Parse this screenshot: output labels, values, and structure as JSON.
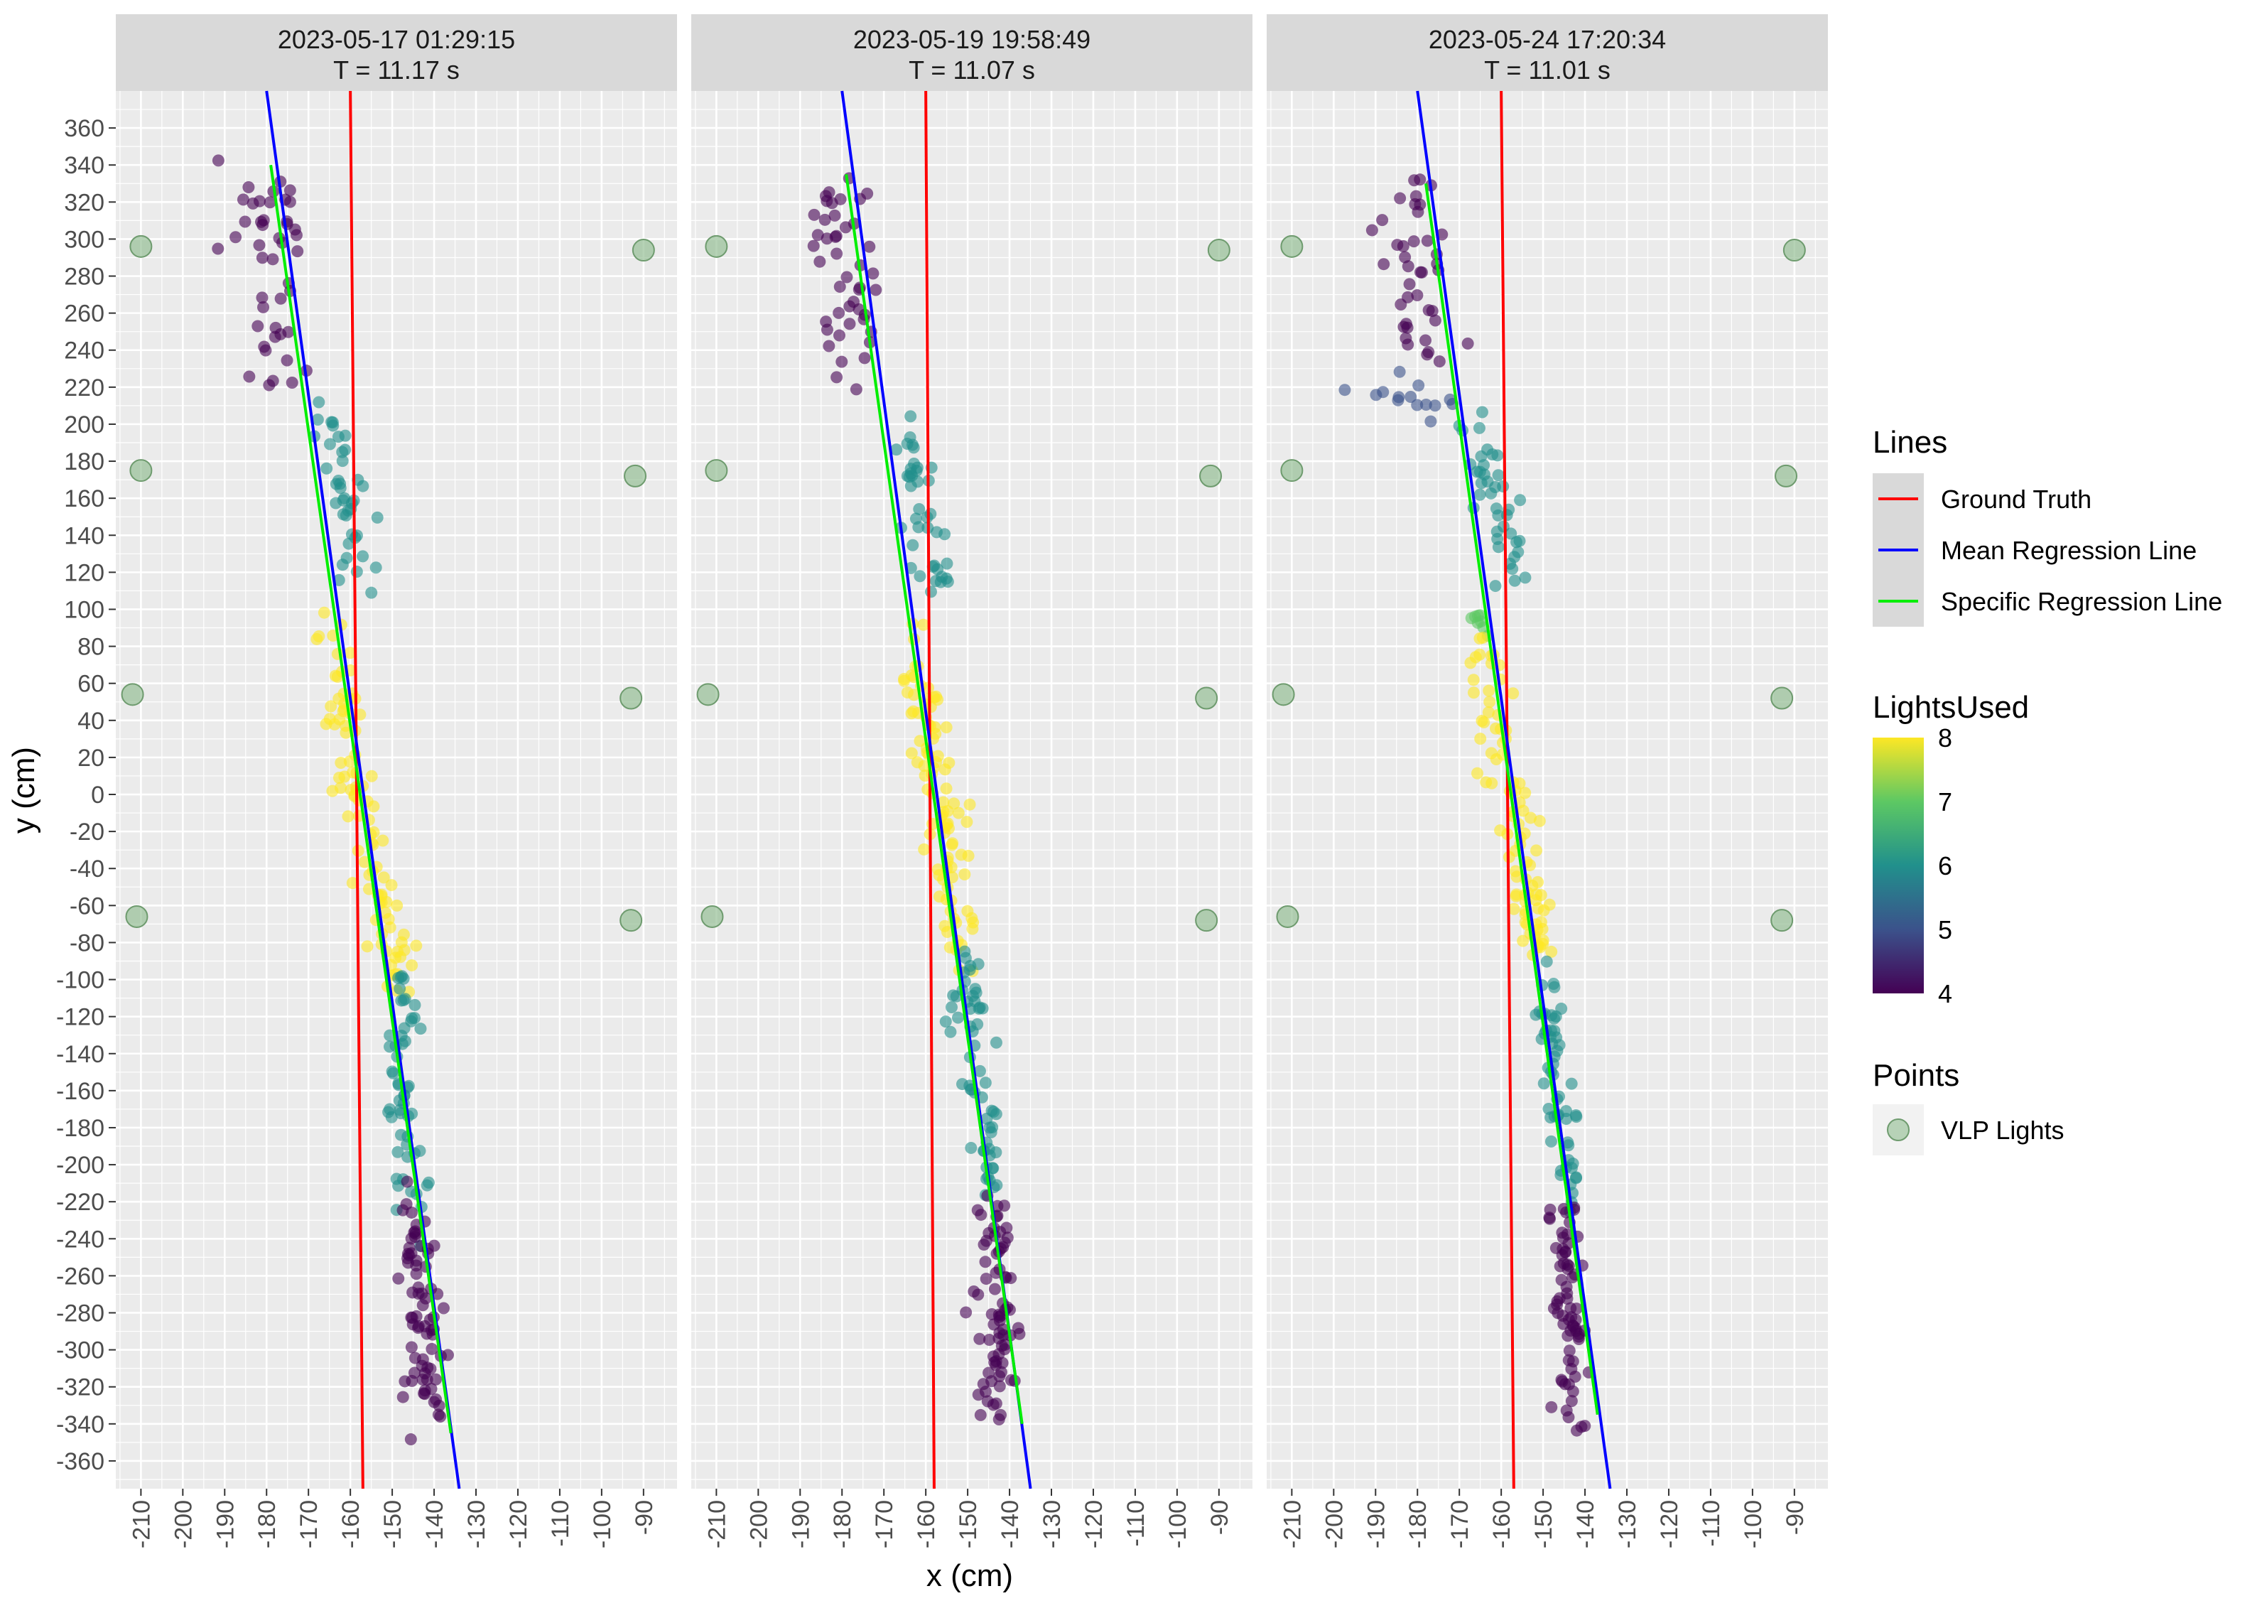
{
  "chart_data": {
    "type": "scatter",
    "xlabel": "x (cm)",
    "ylabel": "y (cm)",
    "xlim": [
      -216,
      -82
    ],
    "ylim": [
      -375,
      380
    ],
    "x_ticks": [
      -210,
      -200,
      -190,
      -180,
      -170,
      -160,
      -150,
      -140,
      -130,
      -120,
      -110,
      -100,
      -90
    ],
    "y_ticks": [
      360,
      340,
      320,
      300,
      280,
      260,
      240,
      220,
      200,
      180,
      160,
      140,
      120,
      100,
      80,
      60,
      40,
      20,
      0,
      -20,
      -40,
      -60,
      -80,
      -100,
      -120,
      -140,
      -160,
      -180,
      -200,
      -220,
      -240,
      -260,
      -280,
      -300,
      -320,
      -340,
      -360
    ],
    "grid": true,
    "colors": {
      "ground_truth": "#ff0000",
      "mean_regression": "#0000ff",
      "specific_regression": "#00ee00",
      "vlp_lights": "#8fbc8f",
      "viridis_4": "#440154",
      "viridis_5": "#3b528b",
      "viridis_6": "#21908c",
      "viridis_7": "#5dc863",
      "viridis_8": "#fde725",
      "panel_bg": "#ebebeb",
      "strip_bg": "#d9d9d9"
    },
    "vlp_lights": [
      {
        "x": -210,
        "y": 296
      },
      {
        "x": -90,
        "y": 294
      },
      {
        "x": -210,
        "y": 175
      },
      {
        "x": -92,
        "y": 172
      },
      {
        "x": -212,
        "y": 54
      },
      {
        "x": -93,
        "y": 52
      },
      {
        "x": -211,
        "y": -66
      },
      {
        "x": -93,
        "y": -68
      }
    ],
    "facets": [
      {
        "strip_line1": "2023-05-17 01:29:15",
        "strip_line2": "T = 11.17 s",
        "ground_truth": [
          [
            -160,
            380
          ],
          [
            -157,
            -375
          ]
        ],
        "mean_regression": [
          [
            -180,
            380
          ],
          [
            -134,
            -375
          ]
        ],
        "specific_regression": [
          [
            -179,
            340
          ],
          [
            -136,
            -345
          ]
        ],
        "clusters": [
          {
            "lights": 4,
            "x0": -180,
            "y0": 340,
            "x1": -176,
            "y1": 222,
            "spread": 7,
            "n": 45
          },
          {
            "lights": 6,
            "x0": -166,
            "y0": 212,
            "x1": -156,
            "y1": 112,
            "spread": 4,
            "n": 40
          },
          {
            "lights": 8,
            "x0": -166,
            "y0": 95,
            "x1": -149,
            "y1": -100,
            "spread": 4,
            "n": 95
          },
          {
            "lights": 6,
            "x0": -148,
            "y0": -100,
            "x1": -145,
            "y1": -235,
            "spread": 3,
            "n": 55
          },
          {
            "lights": 4,
            "x0": -145,
            "y0": -220,
            "x1": -142,
            "y1": -335,
            "spread": 4,
            "n": 75
          }
        ]
      },
      {
        "strip_line1": "2023-05-19 19:58:49",
        "strip_line2": "T = 11.07 s",
        "ground_truth": [
          [
            -160,
            380
          ],
          [
            -158,
            -375
          ]
        ],
        "mean_regression": [
          [
            -180,
            380
          ],
          [
            -135,
            -375
          ]
        ],
        "specific_regression": [
          [
            -179,
            335
          ],
          [
            -137,
            -340
          ]
        ],
        "clusters": [
          {
            "lights": 4,
            "x0": -181,
            "y0": 335,
            "x1": -177,
            "y1": 228,
            "spread": 7,
            "n": 45
          },
          {
            "lights": 6,
            "x0": -166,
            "y0": 205,
            "x1": -156,
            "y1": 108,
            "spread": 4,
            "n": 40
          },
          {
            "lights": 8,
            "x0": -163,
            "y0": 92,
            "x1": -151,
            "y1": -92,
            "spread": 4,
            "n": 95
          },
          {
            "lights": 6,
            "x0": -150,
            "y0": -92,
            "x1": -145,
            "y1": -220,
            "spread": 3,
            "n": 60
          },
          {
            "lights": 4,
            "x0": -144,
            "y0": -215,
            "x1": -143,
            "y1": -338,
            "spread": 4,
            "n": 75
          }
        ]
      },
      {
        "strip_line1": "2023-05-24 17:20:34",
        "strip_line2": "T = 11.01 s",
        "ground_truth": [
          [
            -160,
            380
          ],
          [
            -157,
            -375
          ]
        ],
        "mean_regression": [
          [
            -180,
            380
          ],
          [
            -134,
            -375
          ]
        ],
        "specific_regression": [
          [
            -178,
            330
          ],
          [
            -137,
            -335
          ]
        ],
        "clusters": [
          {
            "lights": 4,
            "x0": -183,
            "y0": 325,
            "x1": -178,
            "y1": 228,
            "spread": 6,
            "n": 40
          },
          {
            "lights": 5,
            "x0": -197,
            "y0": 222,
            "x1": -170,
            "y1": 210,
            "spread": 3,
            "n": 14
          },
          {
            "lights": 6,
            "x0": -167,
            "y0": 198,
            "x1": -155,
            "y1": 115,
            "spread": 4,
            "n": 40
          },
          {
            "lights": 7,
            "x0": -166,
            "y0": 100,
            "x1": -163,
            "y1": 88,
            "spread": 2,
            "n": 8
          },
          {
            "lights": 8,
            "x0": -164,
            "y0": 82,
            "x1": -150,
            "y1": -92,
            "spread": 4,
            "n": 90
          },
          {
            "lights": 6,
            "x0": -150,
            "y0": -95,
            "x1": -143,
            "y1": -220,
            "spread": 3,
            "n": 55
          },
          {
            "lights": 4,
            "x0": -145,
            "y0": -218,
            "x1": -143,
            "y1": -335,
            "spread": 4,
            "n": 70
          }
        ]
      }
    ],
    "legend": {
      "lines_title": "Lines",
      "lines": [
        {
          "label": "Ground Truth",
          "color": "#ff0000"
        },
        {
          "label": "Mean Regression Line",
          "color": "#0000ff"
        },
        {
          "label": "Specific Regression Line",
          "color": "#00ee00"
        }
      ],
      "colorbar_title": "LightsUsed",
      "colorbar_range": [
        4,
        8
      ],
      "colorbar_ticks": [
        "8",
        "7",
        "6",
        "5",
        "4"
      ],
      "points_title": "Points",
      "points": [
        {
          "label": "VLP Lights",
          "color": "#8fbc8f"
        }
      ],
      "placement": "right"
    }
  }
}
